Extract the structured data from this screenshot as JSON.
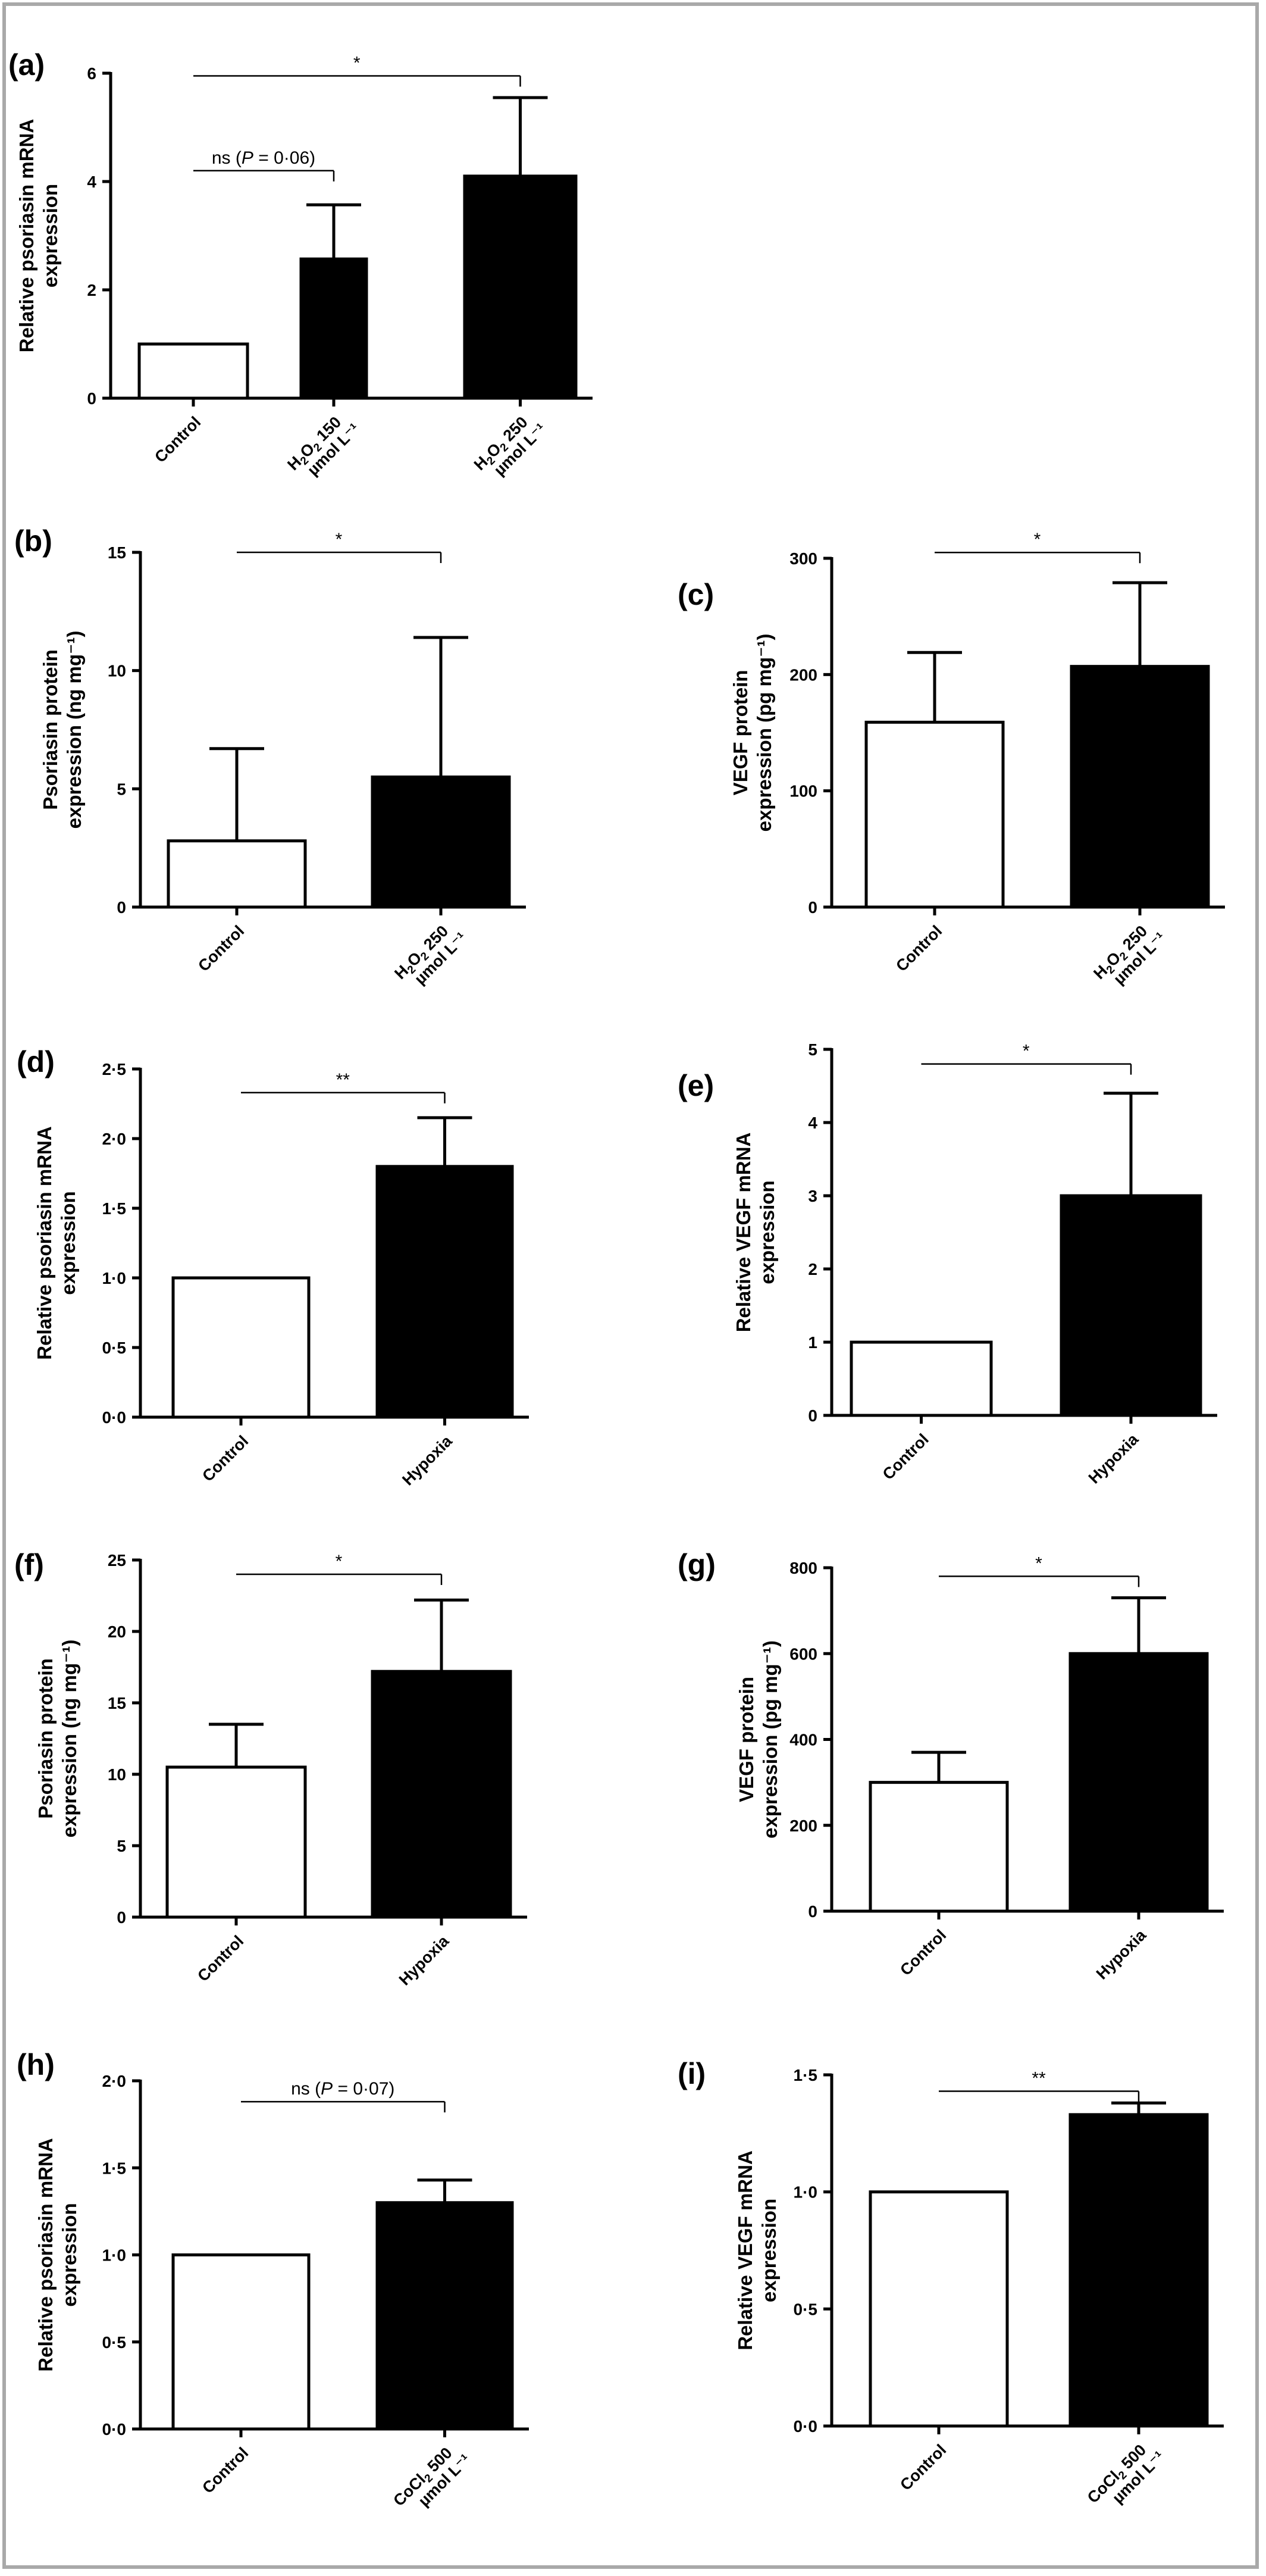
{
  "chart_data": [
    {
      "panel": "(a)",
      "type": "bar",
      "ylabel": [
        "Relative psoriasin mRNA",
        "expression"
      ],
      "ylim": [
        0,
        6
      ],
      "yticks": [
        "0",
        "2",
        "4",
        "6"
      ],
      "ytick_values": [
        0,
        2,
        4,
        6
      ],
      "categories": [
        {
          "lines": [
            "Control"
          ],
          "sub": [
            null
          ]
        },
        {
          "lines": [
            "H2O2 150",
            "µmol L⁻¹"
          ],
          "sub": [
            [
              1,
              2,
              3
            ]
          ]
        },
        {
          "lines": [
            "H2O2 250",
            "µmol L⁻¹"
          ],
          "sub": [
            [
              1,
              2,
              3
            ]
          ]
        }
      ],
      "values": [
        1.0,
        2.57,
        4.1
      ],
      "errors": [
        0,
        1.0,
        1.45
      ],
      "fills": [
        "white",
        "black",
        "black"
      ],
      "significance": [
        {
          "from": 0,
          "to": 2,
          "level": 5.95,
          "label": "*"
        },
        {
          "from": 0,
          "to": 1,
          "level": 4.2,
          "label": "ns (P = 0·06)"
        }
      ]
    },
    {
      "panel": "(b)",
      "type": "bar",
      "ylabel": [
        "Psoriasin protein",
        "expression (ng mg⁻¹)"
      ],
      "ylim": [
        0,
        15
      ],
      "yticks": [
        "0",
        "5",
        "10",
        "15"
      ],
      "ytick_values": [
        0,
        5,
        10,
        15
      ],
      "categories": [
        {
          "lines": [
            "Control"
          ],
          "sub": [
            null
          ]
        },
        {
          "lines": [
            "H2O2 250",
            "µmol L⁻¹"
          ],
          "sub": [
            [
              1,
              2,
              3
            ]
          ]
        }
      ],
      "values": [
        2.8,
        5.5
      ],
      "errors": [
        3.9,
        5.9
      ],
      "fills": [
        "white",
        "black"
      ],
      "significance": [
        {
          "from": 0,
          "to": 1,
          "level": 15.0,
          "label": "*"
        }
      ]
    },
    {
      "panel": "(c)",
      "type": "bar",
      "ylabel": [
        "VEGF protein",
        "expression (pg mg⁻¹)"
      ],
      "ylim": [
        0,
        300
      ],
      "yticks": [
        "0",
        "100",
        "200",
        "300"
      ],
      "ytick_values": [
        0,
        100,
        200,
        300
      ],
      "categories": [
        {
          "lines": [
            "Control"
          ],
          "sub": [
            null
          ]
        },
        {
          "lines": [
            "H2O2 250",
            "µmol L⁻¹"
          ],
          "sub": [
            [
              1,
              2,
              3
            ]
          ]
        }
      ],
      "values": [
        159,
        207
      ],
      "errors": [
        60,
        72
      ],
      "fills": [
        "white",
        "black"
      ],
      "significance": [
        {
          "from": 0,
          "to": 1,
          "level": 305,
          "label": "*"
        }
      ]
    },
    {
      "panel": "(d)",
      "type": "bar",
      "ylabel": [
        "Relative psoriasin mRNA",
        "expression"
      ],
      "ylim": [
        0,
        2.5
      ],
      "yticks": [
        "0·0",
        "0·5",
        "1·0",
        "1·5",
        "2·0",
        "2·5"
      ],
      "ytick_values": [
        0,
        0.5,
        1.0,
        1.5,
        2.0,
        2.5
      ],
      "categories": [
        {
          "lines": [
            "Control"
          ],
          "sub": [
            null
          ]
        },
        {
          "lines": [
            "Hypoxia"
          ],
          "sub": [
            null
          ]
        }
      ],
      "values": [
        1.0,
        1.8
      ],
      "errors": [
        0,
        0.35
      ],
      "fills": [
        "white",
        "black"
      ],
      "significance": [
        {
          "from": 0,
          "to": 1,
          "level": 2.33,
          "label": "**"
        }
      ]
    },
    {
      "panel": "(e)",
      "type": "bar",
      "ylabel": [
        "Relative VEGF mRNA",
        "expression"
      ],
      "ylim": [
        0,
        5
      ],
      "yticks": [
        "0",
        "1",
        "2",
        "3",
        "4",
        "5"
      ],
      "ytick_values": [
        0,
        1,
        2,
        3,
        4,
        5
      ],
      "categories": [
        {
          "lines": [
            "Control"
          ],
          "sub": [
            null
          ]
        },
        {
          "lines": [
            "Hypoxia"
          ],
          "sub": [
            null
          ]
        }
      ],
      "values": [
        1.0,
        3.0
      ],
      "errors": [
        0,
        1.4
      ],
      "fills": [
        "white",
        "black"
      ],
      "significance": [
        {
          "from": 0,
          "to": 1,
          "level": 4.8,
          "label": "*"
        }
      ]
    },
    {
      "panel": "(f)",
      "type": "bar",
      "ylabel": [
        "Psoriasin protein",
        "expression (ng mg⁻¹)"
      ],
      "ylim": [
        0,
        25
      ],
      "yticks": [
        "0",
        "5",
        "10",
        "15",
        "20",
        "25"
      ],
      "ytick_values": [
        0,
        5,
        10,
        15,
        20,
        25
      ],
      "categories": [
        {
          "lines": [
            "Control"
          ],
          "sub": [
            null
          ]
        },
        {
          "lines": [
            "Hypoxia"
          ],
          "sub": [
            null
          ]
        }
      ],
      "values": [
        10.5,
        17.2
      ],
      "errors": [
        3.0,
        5.0
      ],
      "fills": [
        "white",
        "black"
      ],
      "significance": [
        {
          "from": 0,
          "to": 1,
          "level": 24.0,
          "label": "*"
        }
      ]
    },
    {
      "panel": "(g)",
      "type": "bar",
      "ylabel": [
        "VEGF protein",
        "expression (pg mg⁻¹)"
      ],
      "ylim": [
        0,
        800
      ],
      "yticks": [
        "0",
        "200",
        "400",
        "600",
        "800"
      ],
      "ytick_values": [
        0,
        200,
        400,
        600,
        800
      ],
      "categories": [
        {
          "lines": [
            "Control"
          ],
          "sub": [
            null
          ]
        },
        {
          "lines": [
            "Hypoxia"
          ],
          "sub": [
            null
          ]
        }
      ],
      "values": [
        300,
        600
      ],
      "errors": [
        70,
        130
      ],
      "fills": [
        "white",
        "black"
      ],
      "significance": [
        {
          "from": 0,
          "to": 1,
          "level": 780,
          "label": "*"
        }
      ]
    },
    {
      "panel": "(h)",
      "type": "bar",
      "ylabel": [
        "Relative psoriasin mRNA",
        "expression"
      ],
      "ylim": [
        0,
        2.0
      ],
      "yticks": [
        "0·0",
        "0·5",
        "1·0",
        "1·5",
        "2·0"
      ],
      "ytick_values": [
        0,
        0.5,
        1.0,
        1.5,
        2.0
      ],
      "categories": [
        {
          "lines": [
            "Control"
          ],
          "sub": [
            null
          ]
        },
        {
          "lines": [
            "CoCl2 500",
            "µmol L⁻¹"
          ],
          "sub": [
            [
              4
            ]
          ]
        }
      ],
      "values": [
        1.0,
        1.3
      ],
      "errors": [
        0,
        0.13
      ],
      "fills": [
        "white",
        "black"
      ],
      "significance": [
        {
          "from": 0,
          "to": 1,
          "level": 1.88,
          "label": "ns (P = 0·07)"
        }
      ]
    },
    {
      "panel": "(i)",
      "type": "bar",
      "ylabel": [
        "Relative VEGF mRNA",
        "expression"
      ],
      "ylim": [
        0,
        1.5
      ],
      "yticks": [
        "0·0",
        "0·5",
        "1·0",
        "1·5"
      ],
      "ytick_values": [
        0,
        0.5,
        1.0,
        1.5
      ],
      "categories": [
        {
          "lines": [
            "Control"
          ],
          "sub": [
            null
          ]
        },
        {
          "lines": [
            "CoCl2 500",
            "µmol L⁻¹"
          ],
          "sub": [
            [
              4
            ]
          ]
        }
      ],
      "values": [
        1.0,
        1.33
      ],
      "errors": [
        0,
        0.05
      ],
      "fills": [
        "white",
        "black"
      ],
      "significance": [
        {
          "from": 0,
          "to": 1,
          "level": 1.43,
          "label": "**"
        }
      ]
    }
  ]
}
